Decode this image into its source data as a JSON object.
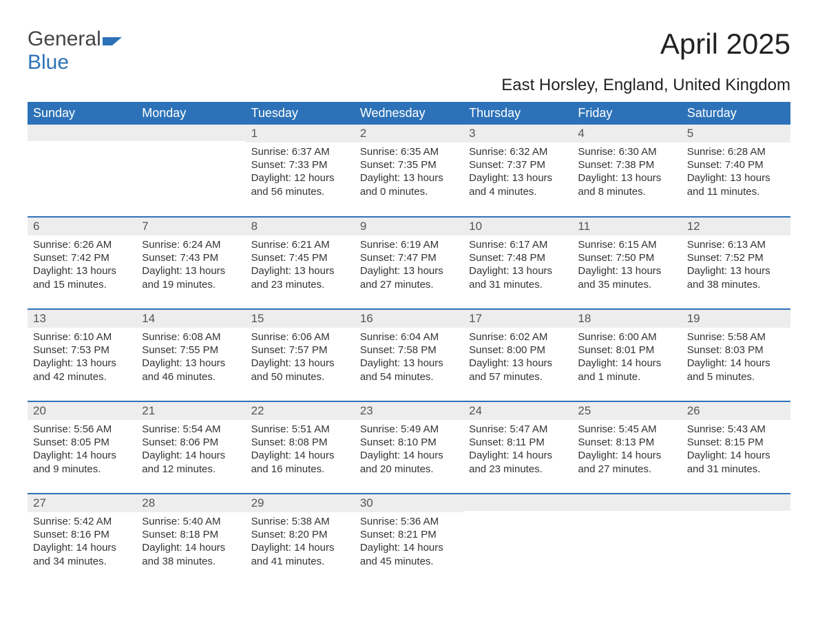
{
  "logo": {
    "part1": "General",
    "part2": "Blue"
  },
  "title": "April 2025",
  "subtitle": "East Horsley, England, United Kingdom",
  "colors": {
    "header_bg": "#2d72b8",
    "header_text": "#ffffff",
    "daynum_bg": "#ededed",
    "row_divider": "#2d72b8",
    "body_text": "#333333",
    "page_bg": "#ffffff"
  },
  "columns": [
    "Sunday",
    "Monday",
    "Tuesday",
    "Wednesday",
    "Thursday",
    "Friday",
    "Saturday"
  ],
  "weeks": [
    [
      {
        "n": "",
        "sunrise": "",
        "sunset": "",
        "daylight": ""
      },
      {
        "n": "",
        "sunrise": "",
        "sunset": "",
        "daylight": ""
      },
      {
        "n": "1",
        "sunrise": "Sunrise: 6:37 AM",
        "sunset": "Sunset: 7:33 PM",
        "daylight": "Daylight: 12 hours and 56 minutes."
      },
      {
        "n": "2",
        "sunrise": "Sunrise: 6:35 AM",
        "sunset": "Sunset: 7:35 PM",
        "daylight": "Daylight: 13 hours and 0 minutes."
      },
      {
        "n": "3",
        "sunrise": "Sunrise: 6:32 AM",
        "sunset": "Sunset: 7:37 PM",
        "daylight": "Daylight: 13 hours and 4 minutes."
      },
      {
        "n": "4",
        "sunrise": "Sunrise: 6:30 AM",
        "sunset": "Sunset: 7:38 PM",
        "daylight": "Daylight: 13 hours and 8 minutes."
      },
      {
        "n": "5",
        "sunrise": "Sunrise: 6:28 AM",
        "sunset": "Sunset: 7:40 PM",
        "daylight": "Daylight: 13 hours and 11 minutes."
      }
    ],
    [
      {
        "n": "6",
        "sunrise": "Sunrise: 6:26 AM",
        "sunset": "Sunset: 7:42 PM",
        "daylight": "Daylight: 13 hours and 15 minutes."
      },
      {
        "n": "7",
        "sunrise": "Sunrise: 6:24 AM",
        "sunset": "Sunset: 7:43 PM",
        "daylight": "Daylight: 13 hours and 19 minutes."
      },
      {
        "n": "8",
        "sunrise": "Sunrise: 6:21 AM",
        "sunset": "Sunset: 7:45 PM",
        "daylight": "Daylight: 13 hours and 23 minutes."
      },
      {
        "n": "9",
        "sunrise": "Sunrise: 6:19 AM",
        "sunset": "Sunset: 7:47 PM",
        "daylight": "Daylight: 13 hours and 27 minutes."
      },
      {
        "n": "10",
        "sunrise": "Sunrise: 6:17 AM",
        "sunset": "Sunset: 7:48 PM",
        "daylight": "Daylight: 13 hours and 31 minutes."
      },
      {
        "n": "11",
        "sunrise": "Sunrise: 6:15 AM",
        "sunset": "Sunset: 7:50 PM",
        "daylight": "Daylight: 13 hours and 35 minutes."
      },
      {
        "n": "12",
        "sunrise": "Sunrise: 6:13 AM",
        "sunset": "Sunset: 7:52 PM",
        "daylight": "Daylight: 13 hours and 38 minutes."
      }
    ],
    [
      {
        "n": "13",
        "sunrise": "Sunrise: 6:10 AM",
        "sunset": "Sunset: 7:53 PM",
        "daylight": "Daylight: 13 hours and 42 minutes."
      },
      {
        "n": "14",
        "sunrise": "Sunrise: 6:08 AM",
        "sunset": "Sunset: 7:55 PM",
        "daylight": "Daylight: 13 hours and 46 minutes."
      },
      {
        "n": "15",
        "sunrise": "Sunrise: 6:06 AM",
        "sunset": "Sunset: 7:57 PM",
        "daylight": "Daylight: 13 hours and 50 minutes."
      },
      {
        "n": "16",
        "sunrise": "Sunrise: 6:04 AM",
        "sunset": "Sunset: 7:58 PM",
        "daylight": "Daylight: 13 hours and 54 minutes."
      },
      {
        "n": "17",
        "sunrise": "Sunrise: 6:02 AM",
        "sunset": "Sunset: 8:00 PM",
        "daylight": "Daylight: 13 hours and 57 minutes."
      },
      {
        "n": "18",
        "sunrise": "Sunrise: 6:00 AM",
        "sunset": "Sunset: 8:01 PM",
        "daylight": "Daylight: 14 hours and 1 minute."
      },
      {
        "n": "19",
        "sunrise": "Sunrise: 5:58 AM",
        "sunset": "Sunset: 8:03 PM",
        "daylight": "Daylight: 14 hours and 5 minutes."
      }
    ],
    [
      {
        "n": "20",
        "sunrise": "Sunrise: 5:56 AM",
        "sunset": "Sunset: 8:05 PM",
        "daylight": "Daylight: 14 hours and 9 minutes."
      },
      {
        "n": "21",
        "sunrise": "Sunrise: 5:54 AM",
        "sunset": "Sunset: 8:06 PM",
        "daylight": "Daylight: 14 hours and 12 minutes."
      },
      {
        "n": "22",
        "sunrise": "Sunrise: 5:51 AM",
        "sunset": "Sunset: 8:08 PM",
        "daylight": "Daylight: 14 hours and 16 minutes."
      },
      {
        "n": "23",
        "sunrise": "Sunrise: 5:49 AM",
        "sunset": "Sunset: 8:10 PM",
        "daylight": "Daylight: 14 hours and 20 minutes."
      },
      {
        "n": "24",
        "sunrise": "Sunrise: 5:47 AM",
        "sunset": "Sunset: 8:11 PM",
        "daylight": "Daylight: 14 hours and 23 minutes."
      },
      {
        "n": "25",
        "sunrise": "Sunrise: 5:45 AM",
        "sunset": "Sunset: 8:13 PM",
        "daylight": "Daylight: 14 hours and 27 minutes."
      },
      {
        "n": "26",
        "sunrise": "Sunrise: 5:43 AM",
        "sunset": "Sunset: 8:15 PM",
        "daylight": "Daylight: 14 hours and 31 minutes."
      }
    ],
    [
      {
        "n": "27",
        "sunrise": "Sunrise: 5:42 AM",
        "sunset": "Sunset: 8:16 PM",
        "daylight": "Daylight: 14 hours and 34 minutes."
      },
      {
        "n": "28",
        "sunrise": "Sunrise: 5:40 AM",
        "sunset": "Sunset: 8:18 PM",
        "daylight": "Daylight: 14 hours and 38 minutes."
      },
      {
        "n": "29",
        "sunrise": "Sunrise: 5:38 AM",
        "sunset": "Sunset: 8:20 PM",
        "daylight": "Daylight: 14 hours and 41 minutes."
      },
      {
        "n": "30",
        "sunrise": "Sunrise: 5:36 AM",
        "sunset": "Sunset: 8:21 PM",
        "daylight": "Daylight: 14 hours and 45 minutes."
      },
      {
        "n": "",
        "sunrise": "",
        "sunset": "",
        "daylight": ""
      },
      {
        "n": "",
        "sunrise": "",
        "sunset": "",
        "daylight": ""
      },
      {
        "n": "",
        "sunrise": "",
        "sunset": "",
        "daylight": ""
      }
    ]
  ]
}
